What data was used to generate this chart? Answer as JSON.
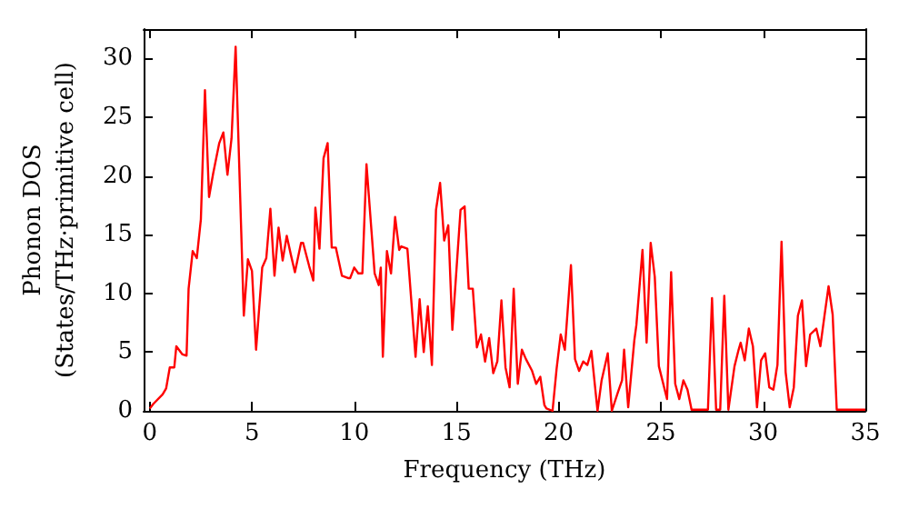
{
  "chart_data": {
    "type": "line",
    "xlabel": "Frequency (THz)",
    "ylabel": "Phonon DOS\n(States/THz·primitive cell)",
    "xlim": [
      -0.3,
      35
    ],
    "ylim": [
      0,
      32.5
    ],
    "xticks": [
      0,
      5,
      10,
      15,
      20,
      25,
      30,
      35
    ],
    "yticks": [
      0,
      5,
      10,
      15,
      20,
      25,
      30
    ],
    "grid": false,
    "marker": "none",
    "line_style": "solid",
    "series": [
      {
        "color": "#ff0000",
        "x": [
          0,
          0.18,
          0.63,
          0.8,
          0.98,
          1.2,
          1.3,
          1.6,
          1.8,
          1.9,
          2.1,
          2.3,
          2.5,
          2.7,
          2.9,
          3.1,
          3.4,
          3.6,
          3.8,
          4.0,
          4.2,
          4.4,
          4.6,
          4.8,
          5.0,
          5.2,
          5.5,
          5.7,
          5.9,
          6.1,
          6.3,
          6.5,
          6.7,
          6.9,
          7.1,
          7.4,
          7.5,
          7.8,
          8.0,
          8.1,
          8.3,
          8.5,
          8.7,
          8.9,
          9.1,
          9.4,
          9.7,
          9.8,
          10.0,
          10.2,
          10.4,
          10.6,
          11.0,
          11.2,
          11.3,
          11.4,
          11.6,
          11.8,
          12.0,
          12.2,
          12.3,
          12.6,
          13.0,
          13.2,
          13.4,
          13.6,
          13.8,
          14.0,
          14.2,
          14.4,
          14.6,
          14.8,
          15.2,
          15.4,
          15.6,
          15.8,
          16.0,
          16.2,
          16.4,
          16.6,
          16.8,
          17.0,
          17.2,
          17.4,
          17.6,
          17.8,
          18.0,
          18.2,
          18.4,
          18.7,
          18.9,
          19.1,
          19.3,
          19.4,
          19.7,
          19.9,
          20.1,
          20.3,
          20.6,
          20.8,
          21.0,
          21.2,
          21.4,
          21.6,
          21.9,
          22.1,
          22.4,
          22.6,
          22.9,
          23.1,
          23.2,
          23.4,
          23.7,
          23.8,
          24.1,
          24.3,
          24.5,
          24.7,
          24.9,
          25.3,
          25.5,
          25.7,
          25.9,
          26.1,
          26.3,
          26.5,
          27.3,
          27.5,
          27.7,
          27.9,
          28.1,
          28.3,
          28.6,
          28.8,
          28.9,
          29.1,
          29.3,
          29.5,
          29.7,
          29.9,
          30.1,
          30.3,
          30.5,
          30.7,
          30.9,
          31.1,
          31.3,
          31.5,
          31.7,
          31.9,
          32.1,
          32.3,
          32.6,
          32.8,
          33.0,
          33.2,
          33.4,
          33.6,
          35
        ],
        "values": [
          0.2,
          0.6,
          1.4,
          1.9,
          3.7,
          3.7,
          5.5,
          4.8,
          4.7,
          10.4,
          13.6,
          13,
          16.3,
          27.3,
          18.2,
          20.2,
          22.8,
          23.7,
          20.1,
          23.2,
          31,
          19.5,
          8.1,
          12.9,
          11.9,
          5.2,
          12.2,
          13,
          17.2,
          11.5,
          15.6,
          12.8,
          14.9,
          13.3,
          11.8,
          14.3,
          14.3,
          12.3,
          11.1,
          17.3,
          13.8,
          21.5,
          22.8,
          13.9,
          13.9,
          11.5,
          11.3,
          11.3,
          12.2,
          11.7,
          11.7,
          21,
          11.7,
          10.7,
          12.2,
          4.6,
          13.6,
          11.7,
          16.5,
          13.7,
          14,
          13.8,
          4.6,
          9.5,
          5,
          8.9,
          3.9,
          17.1,
          19.4,
          14.5,
          15.8,
          6.9,
          17.1,
          17.4,
          10.4,
          10.4,
          5.4,
          6.5,
          4.2,
          6.2,
          3.2,
          4.2,
          9.4,
          3.7,
          2,
          10.4,
          2.3,
          5.2,
          4.4,
          3.4,
          2.3,
          2.9,
          0.5,
          0.2,
          0,
          3.6,
          6.5,
          5.2,
          12.4,
          4.4,
          3.4,
          4.2,
          3.9,
          5.1,
          0,
          2.6,
          4.9,
          0,
          1.6,
          2.6,
          5.2,
          0.3,
          6,
          7.3,
          13.7,
          5.8,
          14.3,
          11.4,
          3.8,
          1,
          11.8,
          2.3,
          1,
          2.6,
          1.8,
          0.1,
          0.1,
          9.6,
          0.1,
          0.1,
          9.8,
          0.1,
          3.8,
          5.2,
          5.8,
          4.3,
          7,
          5.5,
          0.3,
          4.3,
          4.9,
          2,
          1.8,
          3.9,
          14.4,
          3.3,
          0.3,
          2,
          8.1,
          9.4,
          3.8,
          6.5,
          7,
          5.5,
          8.1,
          10.6,
          8.2,
          0.1,
          0.1
        ]
      }
    ]
  }
}
